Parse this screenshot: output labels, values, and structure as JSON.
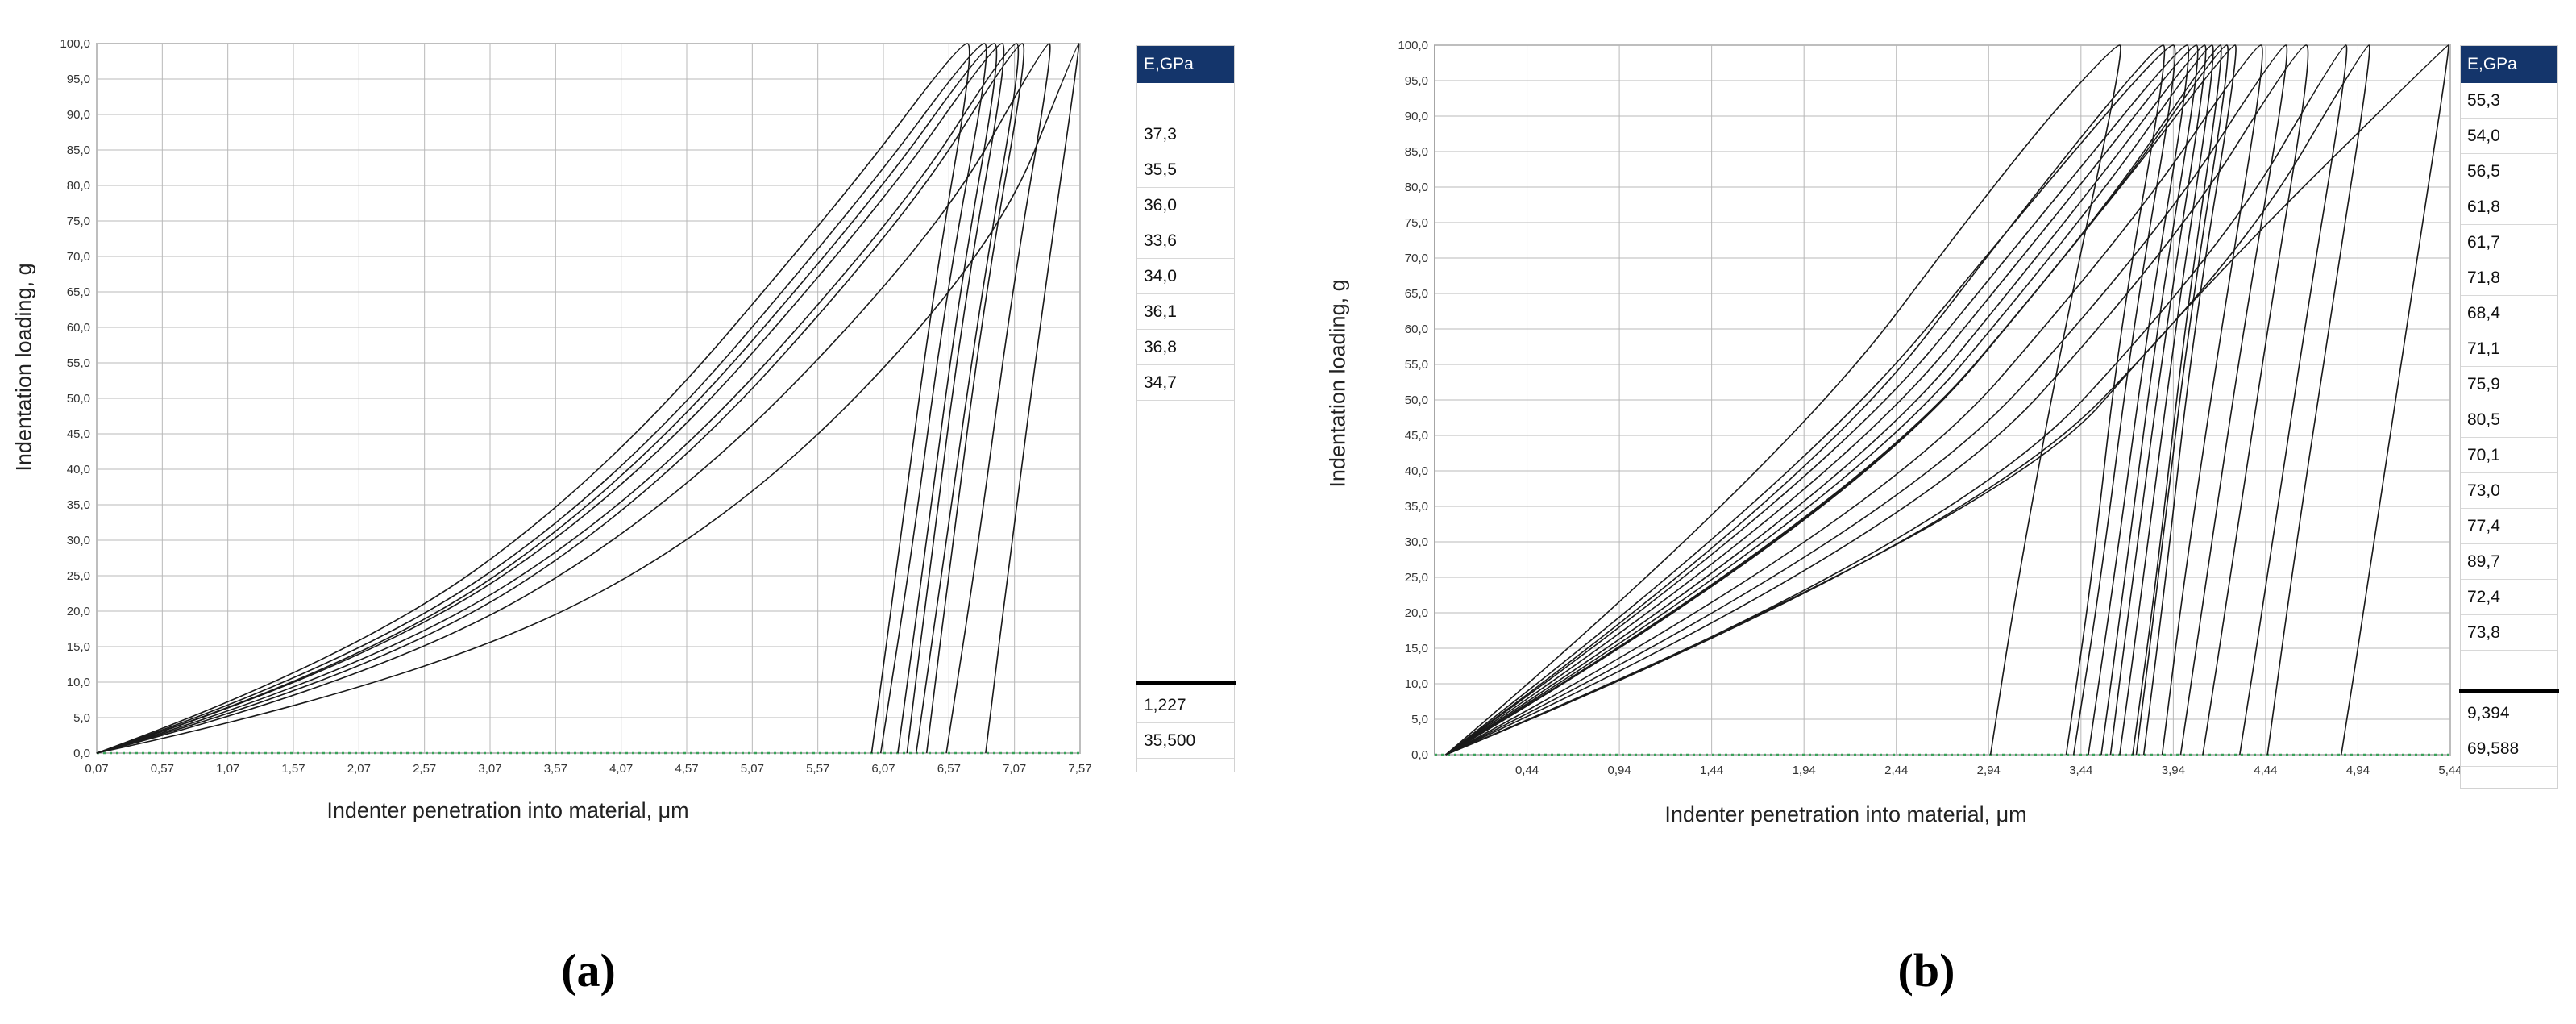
{
  "chart_data": [
    {
      "panel": "(a)",
      "type": "line",
      "xlabel": "Indenter penetration into material, μm",
      "ylabel": "Indentation loading, g",
      "x_ticks": [
        "0,07",
        "0,57",
        "1,07",
        "1,57",
        "2,07",
        "2,57",
        "3,07",
        "3,57",
        "4,07",
        "4,57",
        "5,07",
        "5,57",
        "6,07",
        "6,57",
        "7,07",
        "7,57"
      ],
      "y_ticks": [
        "0,0",
        "5,0",
        "10,0",
        "15,0",
        "20,0",
        "25,0",
        "30,0",
        "35,0",
        "40,0",
        "45,0",
        "50,0",
        "55,0",
        "60,0",
        "65,0",
        "70,0",
        "75,0",
        "80,0",
        "85,0",
        "90,0",
        "95,0",
        "100,0"
      ],
      "xlim": [
        0.07,
        7.57
      ],
      "ylim": [
        0,
        100
      ],
      "grid": true,
      "series": [
        {
          "values": [
            [
              0.07,
              0
            ],
            [
              2.05,
              12.5
            ],
            [
              4.05,
              38
            ],
            [
              5.9,
              78
            ],
            [
              6.78,
              100
            ],
            [
              6.9,
              100
            ],
            [
              6.55,
              65
            ],
            [
              6.3,
              30
            ],
            [
              6.05,
              0
            ]
          ]
        },
        {
          "values": [
            [
              0.07,
              0
            ],
            [
              2.0,
              13
            ],
            [
              3.95,
              39
            ],
            [
              5.8,
              79
            ],
            [
              6.65,
              100
            ],
            [
              6.77,
              100
            ],
            [
              6.45,
              65
            ],
            [
              6.2,
              30
            ],
            [
              5.98,
              0
            ]
          ]
        },
        {
          "values": [
            [
              0.07,
              0
            ],
            [
              2.1,
              12
            ],
            [
              4.15,
              37
            ],
            [
              6.05,
              77
            ],
            [
              6.92,
              100
            ],
            [
              7.03,
              100
            ],
            [
              6.7,
              65
            ],
            [
              6.45,
              30
            ],
            [
              6.25,
              0
            ]
          ]
        },
        {
          "values": [
            [
              0.07,
              0
            ],
            [
              2.2,
              11
            ],
            [
              4.3,
              35.5
            ],
            [
              6.25,
              75.5
            ],
            [
              7.08,
              100
            ],
            [
              7.18,
              100
            ],
            [
              6.85,
              65
            ],
            [
              6.6,
              30
            ],
            [
              6.4,
              0
            ]
          ]
        },
        {
          "values": [
            [
              0.07,
              0
            ],
            [
              2.15,
              11.5
            ],
            [
              4.25,
              36
            ],
            [
              6.2,
              76
            ],
            [
              7.03,
              100
            ],
            [
              7.14,
              100
            ],
            [
              6.82,
              65
            ],
            [
              6.55,
              30
            ],
            [
              6.32,
              0
            ]
          ]
        },
        {
          "values": [
            [
              0.07,
              0
            ],
            [
              2.08,
              12
            ],
            [
              4.1,
              37.5
            ],
            [
              5.98,
              77.5
            ],
            [
              6.85,
              100
            ],
            [
              6.98,
              100
            ],
            [
              6.65,
              65
            ],
            [
              6.4,
              30
            ],
            [
              6.18,
              0
            ]
          ]
        },
        {
          "values": [
            [
              0.07,
              0
            ],
            [
              2.25,
              10.5
            ],
            [
              4.45,
              34
            ],
            [
              6.48,
              73
            ],
            [
              7.3,
              100
            ],
            [
              7.37,
              100
            ],
            [
              7.05,
              65
            ],
            [
              6.8,
              30
            ],
            [
              6.55,
              0
            ]
          ]
        },
        {
          "values": [
            [
              0.07,
              0
            ],
            [
              2.45,
              9.5
            ],
            [
              4.85,
              31
            ],
            [
              6.9,
              70
            ],
            [
              7.55,
              100
            ],
            [
              7.57,
              100
            ],
            [
              7.3,
              65
            ],
            [
              7.05,
              30
            ],
            [
              6.85,
              0
            ]
          ]
        }
      ],
      "table": {
        "header": "E,GPa",
        "values": [
          "37,3",
          "35,5",
          "36,0",
          "33,6",
          "34,0",
          "36,1",
          "36,8",
          "34,7"
        ],
        "stats": [
          "1,227",
          "35,500"
        ]
      }
    },
    {
      "panel": "(b)",
      "type": "line",
      "xlabel": "Indenter penetration into material, μm",
      "ylabel": "Indentation loading, g",
      "x_ticks": [
        "0,44",
        "0,94",
        "1,44",
        "1,94",
        "2,44",
        "2,94",
        "3,44",
        "3,94",
        "4,44",
        "4,94",
        "5,44"
      ],
      "y_ticks": [
        "0,0",
        "5,0",
        "10,0",
        "15,0",
        "20,0",
        "25,0",
        "30,0",
        "35,0",
        "40,0",
        "45,0",
        "50,0",
        "55,0",
        "60,0",
        "65,0",
        "70,0",
        "75,0",
        "80,0",
        "85,0",
        "90,0",
        "95,0",
        "100,0"
      ],
      "xlim": [
        -0.06,
        5.44
      ],
      "ylim": [
        0,
        100
      ],
      "grid": true,
      "series": [
        {
          "values": [
            [
              0,
              0
            ],
            [
              1.8,
              40
            ],
            [
              3.1,
              85
            ],
            [
              3.62,
              100
            ],
            [
              3.68,
              100
            ],
            [
              3.35,
              60
            ],
            [
              3.1,
              25
            ],
            [
              2.95,
              0
            ]
          ]
        },
        {
          "values": [
            [
              0,
              0
            ],
            [
              1.9,
              38
            ],
            [
              3.3,
              82
            ],
            [
              3.9,
              100
            ],
            [
              3.98,
              100
            ],
            [
              3.72,
              60
            ],
            [
              3.55,
              25
            ],
            [
              3.4,
              0
            ]
          ]
        },
        {
          "values": [
            [
              0,
              0
            ],
            [
              2.0,
              37
            ],
            [
              3.35,
              80
            ],
            [
              3.98,
              100
            ],
            [
              4.05,
              100
            ],
            [
              3.8,
              60
            ],
            [
              3.62,
              25
            ],
            [
              3.48,
              0
            ]
          ]
        },
        {
          "values": [
            [
              0,
              0
            ],
            [
              2.05,
              36
            ],
            [
              3.4,
              79
            ],
            [
              4.03,
              100
            ],
            [
              4.1,
              100
            ],
            [
              3.85,
              60
            ],
            [
              3.68,
              25
            ],
            [
              3.55,
              0
            ]
          ]
        },
        {
          "values": [
            [
              0,
              0
            ],
            [
              2.1,
              35
            ],
            [
              3.45,
              78
            ],
            [
              4.08,
              100
            ],
            [
              4.14,
              100
            ],
            [
              3.9,
              60
            ],
            [
              3.72,
              25
            ],
            [
              3.6,
              0
            ]
          ]
        },
        {
          "values": [
            [
              0,
              0
            ],
            [
              2.12,
              34
            ],
            [
              3.5,
              77
            ],
            [
              4.12,
              100
            ],
            [
              4.18,
              100
            ],
            [
              3.95,
              60
            ],
            [
              3.78,
              25
            ],
            [
              3.65,
              0
            ]
          ]
        },
        {
          "values": [
            [
              0,
              0
            ],
            [
              2.15,
              33
            ],
            [
              3.55,
              76
            ],
            [
              4.17,
              100
            ],
            [
              4.22,
              100
            ],
            [
              4.0,
              60
            ],
            [
              3.85,
              25
            ],
            [
              3.72,
              0
            ]
          ]
        },
        {
          "values": [
            [
              0,
              0
            ],
            [
              2.3,
              32
            ],
            [
              3.7,
              74
            ],
            [
              4.38,
              100
            ],
            [
              4.45,
              100
            ],
            [
              4.2,
              60
            ],
            [
              4.0,
              25
            ],
            [
              3.88,
              0
            ]
          ]
        },
        {
          "values": [
            [
              0,
              0
            ],
            [
              2.5,
              30
            ],
            [
              3.95,
              72
            ],
            [
              4.62,
              100
            ],
            [
              4.7,
              100
            ],
            [
              4.45,
              60
            ],
            [
              4.25,
              25
            ],
            [
              4.1,
              0
            ]
          ]
        },
        {
          "values": [
            [
              0,
              0
            ],
            [
              2.7,
              29
            ],
            [
              4.2,
              71
            ],
            [
              4.85,
              100
            ],
            [
              4.9,
              100
            ],
            [
              4.65,
              60
            ],
            [
              4.45,
              25
            ],
            [
              4.3,
              0
            ]
          ]
        },
        {
          "values": [
            [
              0,
              0
            ],
            [
              3.0,
              33
            ],
            [
              4.1,
              66
            ],
            [
              5.42,
              100
            ],
            [
              5.44,
              100
            ],
            [
              5.2,
              60
            ],
            [
              5.0,
              25
            ],
            [
              4.85,
              0
            ]
          ]
        },
        {
          "values": [
            [
              0,
              0
            ],
            [
              2.2,
              34
            ],
            [
              3.6,
              78
            ],
            [
              4.25,
              100
            ],
            [
              4.3,
              100
            ],
            [
              4.05,
              60
            ],
            [
              3.9,
              25
            ],
            [
              3.78,
              0
            ]
          ]
        },
        {
          "values": [
            [
              0,
              0
            ],
            [
              1.95,
              37
            ],
            [
              3.25,
              81
            ],
            [
              3.85,
              100
            ],
            [
              3.92,
              100
            ],
            [
              3.65,
              60
            ],
            [
              3.5,
              25
            ],
            [
              3.36,
              0
            ]
          ]
        },
        {
          "values": [
            [
              0,
              0
            ],
            [
              2.4,
              31
            ],
            [
              3.85,
              73
            ],
            [
              4.52,
              100
            ],
            [
              4.58,
              100
            ],
            [
              4.32,
              60
            ],
            [
              4.12,
              25
            ],
            [
              3.98,
              0
            ]
          ]
        },
        {
          "values": [
            [
              0,
              0
            ],
            [
              2.8,
              30
            ],
            [
              4.3,
              70
            ],
            [
              4.98,
              100
            ],
            [
              5.02,
              100
            ],
            [
              4.78,
              60
            ],
            [
              4.58,
              25
            ],
            [
              4.45,
              0
            ]
          ]
        },
        {
          "values": [
            [
              0,
              0
            ],
            [
              2.18,
              34
            ],
            [
              3.58,
              77
            ],
            [
              4.2,
              100
            ],
            [
              4.26,
              100
            ],
            [
              4.02,
              60
            ],
            [
              3.86,
              25
            ],
            [
              3.74,
              0
            ]
          ]
        }
      ],
      "table": {
        "header": "E,GPa",
        "values": [
          "55,3",
          "54,0",
          "56,5",
          "61,8",
          "61,7",
          "71,8",
          "68,4",
          "71,1",
          "75,9",
          "80,5",
          "70,1",
          "73,0",
          "77,4",
          "89,7",
          "72,4",
          "73,8"
        ],
        "stats": [
          "9,394",
          "69,588"
        ]
      }
    }
  ],
  "captions": [
    "(a)",
    "(b)"
  ],
  "colors": {
    "line": "#1a1a1a",
    "grid": "#b8b8b8",
    "header_bg": "#14356b",
    "baseline": "#3aa35a"
  }
}
